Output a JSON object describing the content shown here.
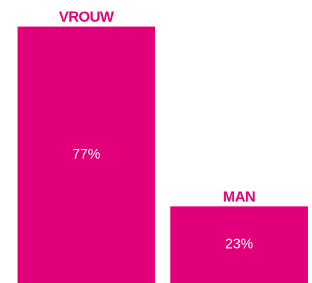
{
  "chart_data": {
    "type": "bar",
    "categories": [
      "VROUW",
      "MAN"
    ],
    "values": [
      77,
      23
    ],
    "value_labels": [
      "77%",
      "23%"
    ],
    "color": "#e2007a"
  }
}
